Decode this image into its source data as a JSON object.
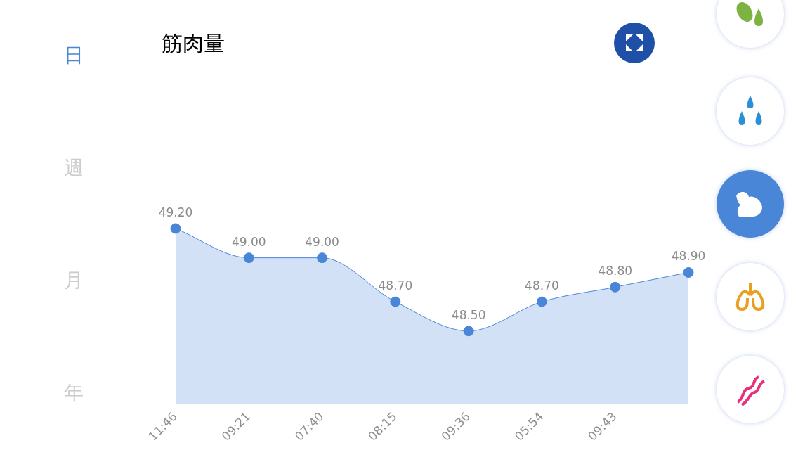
{
  "chart_data": {
    "type": "area",
    "title": "筋肉量",
    "categories": [
      "11:46",
      "09:21",
      "07:40",
      "08:15",
      "09:36",
      "05:54",
      "09:43",
      null
    ],
    "series": [
      {
        "color": "#4a86d8",
        "values": [
          49.2,
          49.0,
          49.0,
          48.7,
          48.5,
          48.7,
          48.8,
          48.9
        ],
        "value_labels": [
          "49.20",
          "49.00",
          "49.00",
          "48.70",
          "48.50",
          "48.70",
          "48.80",
          "48.90"
        ]
      }
    ],
    "tick_labels": "x",
    "grid": false,
    "legend": false,
    "marker": "circle",
    "annotations": [
      "日",
      "週",
      "月",
      "年"
    ]
  }
}
